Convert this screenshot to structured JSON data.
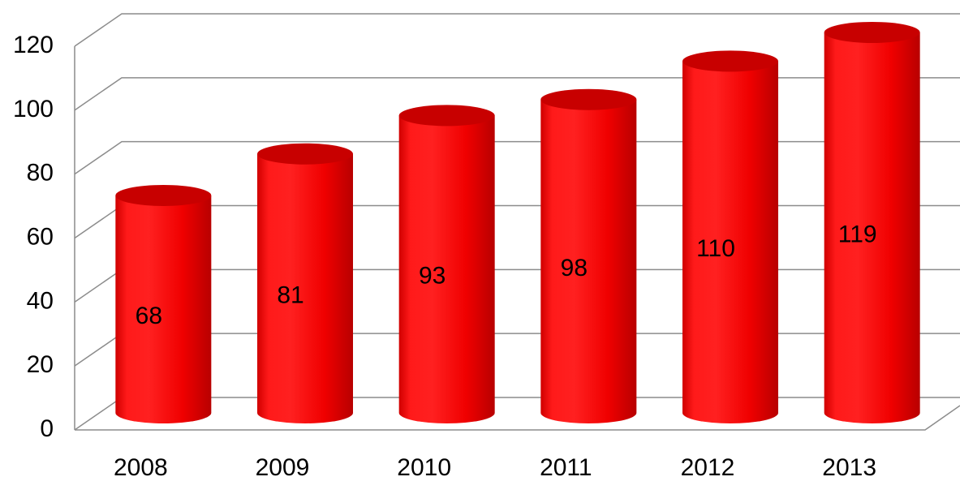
{
  "chart_data": {
    "type": "cylinder",
    "categories": [
      "2008",
      "2009",
      "2010",
      "2011",
      "2012",
      "2013"
    ],
    "values": [
      68,
      81,
      93,
      98,
      110,
      119
    ],
    "color": "#ff0000",
    "ylim": [
      0,
      120
    ],
    "yticks": [
      0,
      20,
      40,
      60,
      80,
      100,
      120
    ],
    "grid": true
  }
}
